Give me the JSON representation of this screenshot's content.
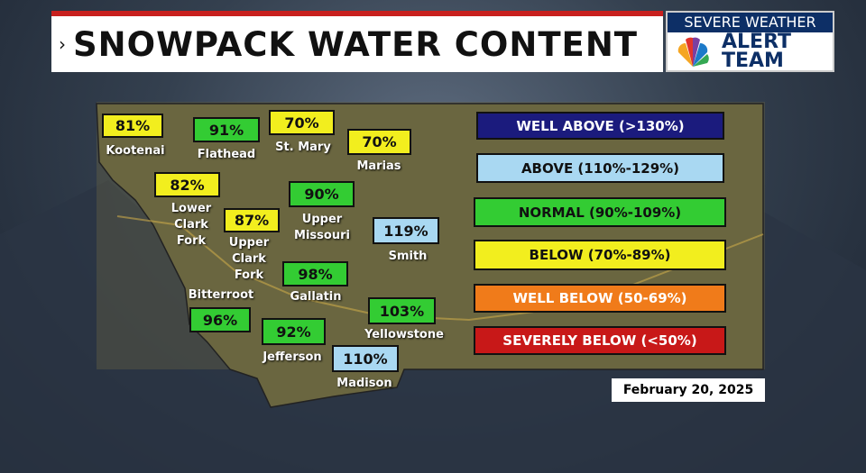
{
  "header": {
    "title": "SNOWPACK WATER CONTENT"
  },
  "logo": {
    "line1": "SEVERE WEATHER",
    "line2": "ALERT",
    "line3": "TEAM"
  },
  "basins": [
    {
      "name": "Kootenai",
      "value": "81%"
    },
    {
      "name": "Flathead",
      "value": "91%"
    },
    {
      "name": "St. Mary",
      "value": "70%"
    },
    {
      "name": "Marias",
      "value": "70%"
    },
    {
      "name": "Lower Clark Fork",
      "value": "82%"
    },
    {
      "name": "Upper Clark Fork",
      "value": "87%"
    },
    {
      "name": "Upper Missouri",
      "value": "90%"
    },
    {
      "name": "Smith",
      "value": "119%"
    },
    {
      "name": "Gallatin",
      "value": "98%"
    },
    {
      "name": "Bitterroot",
      "value": "96%"
    },
    {
      "name": "Yellowstone",
      "value": "103%"
    },
    {
      "name": "Jefferson",
      "value": "92%"
    },
    {
      "name": "Madison",
      "value": "110%"
    }
  ],
  "legend": [
    {
      "label": "WELL ABOVE (>130%)"
    },
    {
      "label": "ABOVE (110%-129%)"
    },
    {
      "label": "NORMAL (90%-109%)"
    },
    {
      "label": "BELOW (70%-89%)"
    },
    {
      "label": "WELL BELOW (50-69%)"
    },
    {
      "label": "SEVERELY BELOW (<50%)"
    }
  ],
  "date": "February 20, 2025"
}
